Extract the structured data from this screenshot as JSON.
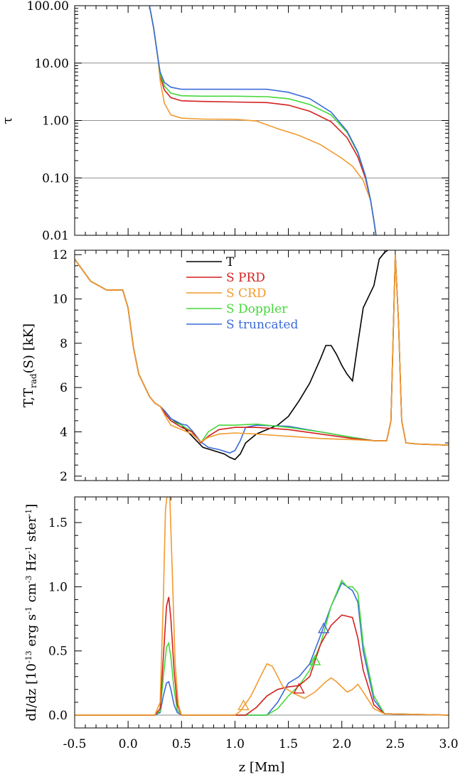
{
  "chart_data": [
    {
      "type": "line",
      "panel": "top",
      "ylabel": "τ",
      "yscale": "log",
      "ylim": [
        0.01,
        100
      ],
      "xlim": [
        -0.5,
        3.0
      ],
      "ytick_labels": [
        "100.00",
        "10.00",
        "1.00",
        "0.10",
        "0.01"
      ],
      "ytick_values": [
        100,
        10,
        1,
        0.1,
        0.01
      ],
      "grid": "horizontal lines at decades",
      "colors": {
        "PRD": "#d42020",
        "CRD": "#f29a2e",
        "Doppler": "#45d83a",
        "truncated": "#3b6bd8"
      },
      "series": [
        {
          "key": "PRD",
          "x": [
            0.2,
            0.24,
            0.28,
            0.3,
            0.34,
            0.4,
            0.5,
            0.7,
            1.0,
            1.3,
            1.5,
            1.7,
            1.9,
            2.05,
            2.15,
            2.22,
            2.27,
            2.3,
            2.32
          ],
          "values": [
            100,
            40,
            12,
            6.0,
            3.4,
            2.5,
            2.2,
            2.15,
            2.1,
            2.05,
            1.85,
            1.45,
            0.95,
            0.5,
            0.23,
            0.1,
            0.04,
            0.018,
            0.01
          ]
        },
        {
          "key": "CRD",
          "x": [
            0.2,
            0.24,
            0.28,
            0.3,
            0.34,
            0.4,
            0.5,
            0.7,
            1.0,
            1.2,
            1.4,
            1.6,
            1.8,
            2.0,
            2.1,
            2.2,
            2.27,
            2.3,
            2.32
          ],
          "values": [
            100,
            40,
            12,
            5.0,
            2.0,
            1.25,
            1.1,
            1.06,
            1.05,
            0.98,
            0.72,
            0.55,
            0.38,
            0.22,
            0.16,
            0.09,
            0.04,
            0.018,
            0.01
          ]
        },
        {
          "key": "Doppler",
          "x": [
            0.2,
            0.24,
            0.28,
            0.3,
            0.34,
            0.4,
            0.5,
            0.7,
            1.0,
            1.3,
            1.5,
            1.7,
            1.9,
            2.05,
            2.15,
            2.22,
            2.27,
            2.3,
            2.32
          ],
          "values": [
            100,
            40,
            12,
            6.5,
            4.0,
            3.0,
            2.7,
            2.65,
            2.65,
            2.6,
            2.4,
            1.9,
            1.25,
            0.62,
            0.27,
            0.11,
            0.04,
            0.018,
            0.01
          ]
        },
        {
          "key": "truncated",
          "x": [
            0.2,
            0.24,
            0.28,
            0.3,
            0.34,
            0.4,
            0.5,
            0.7,
            1.0,
            1.3,
            1.5,
            1.7,
            1.9,
            2.05,
            2.15,
            2.22,
            2.27,
            2.3,
            2.32
          ],
          "values": [
            100,
            40,
            12,
            7.0,
            4.6,
            3.8,
            3.5,
            3.5,
            3.5,
            3.5,
            3.1,
            2.4,
            1.4,
            0.65,
            0.28,
            0.11,
            0.04,
            0.018,
            0.01
          ]
        }
      ]
    },
    {
      "type": "line",
      "panel": "middle",
      "ylabel_main": "T,T",
      "ylabel_sub": "rad",
      "ylabel_rest": "(S) [kK]",
      "ylim": [
        1.8,
        12.2
      ],
      "xlim": [
        -0.5,
        3.0
      ],
      "ytick_values": [
        2,
        4,
        6,
        8,
        10,
        12
      ],
      "legend": {
        "placement": "upper-left",
        "entries": [
          {
            "key": "T",
            "label": "T",
            "color": "#000000"
          },
          {
            "key": "PRD",
            "label": "S PRD",
            "color": "#d42020"
          },
          {
            "key": "CRD",
            "label": "S CRD",
            "color": "#f29a2e"
          },
          {
            "key": "Doppler",
            "label": "S Doppler",
            "color": "#45d83a"
          },
          {
            "key": "truncated",
            "label": "S truncated",
            "color": "#3b6bd8"
          }
        ]
      },
      "series": [
        {
          "key": "T",
          "x": [
            -0.5,
            -0.35,
            -0.2,
            -0.05,
            0.0,
            0.05,
            0.1,
            0.2,
            0.25,
            0.3,
            0.35,
            0.4,
            0.5,
            0.6,
            0.7,
            0.8,
            0.9,
            0.95,
            1.0,
            1.05,
            1.1,
            1.2,
            1.3,
            1.4,
            1.5,
            1.6,
            1.7,
            1.8,
            1.85,
            1.9,
            1.95,
            2.0,
            2.05,
            2.1,
            2.15,
            2.2,
            2.3,
            2.35,
            2.4,
            2.43
          ],
          "values": [
            11.8,
            10.8,
            10.4,
            10.4,
            9.6,
            7.8,
            6.6,
            5.6,
            5.3,
            5.15,
            4.9,
            4.6,
            4.3,
            3.8,
            3.3,
            3.15,
            3.0,
            2.85,
            2.75,
            3.0,
            3.5,
            3.9,
            4.1,
            4.3,
            4.7,
            5.4,
            6.2,
            7.3,
            7.9,
            7.9,
            7.5,
            7.0,
            6.6,
            6.3,
            8.0,
            9.6,
            10.6,
            11.8,
            12.1,
            12.2
          ]
        },
        {
          "key": "PRD",
          "x": [
            -0.5,
            -0.35,
            -0.2,
            -0.05,
            0.0,
            0.05,
            0.1,
            0.2,
            0.25,
            0.3,
            0.35,
            0.4,
            0.5,
            0.6,
            0.68,
            0.75,
            0.85,
            1.0,
            1.2,
            1.5,
            1.8,
            2.1,
            2.3,
            2.42,
            2.46,
            2.5,
            2.53,
            2.56,
            2.6,
            2.7,
            3.0
          ],
          "values": [
            11.8,
            10.8,
            10.4,
            10.4,
            9.6,
            7.8,
            6.6,
            5.6,
            5.3,
            5.15,
            4.8,
            4.5,
            4.2,
            4.0,
            3.5,
            3.8,
            4.1,
            4.2,
            4.2,
            4.1,
            3.9,
            3.7,
            3.6,
            3.6,
            4.5,
            12.0,
            9.0,
            4.5,
            3.5,
            3.45,
            3.4
          ]
        },
        {
          "key": "CRD",
          "x": [
            -0.5,
            -0.35,
            -0.2,
            -0.05,
            0.0,
            0.05,
            0.1,
            0.2,
            0.25,
            0.3,
            0.35,
            0.4,
            0.5,
            0.6,
            0.68,
            0.75,
            0.85,
            1.0,
            1.2,
            1.5,
            1.8,
            2.1,
            2.3,
            2.42,
            2.46,
            2.5,
            2.53,
            2.56,
            2.6,
            2.7,
            3.0
          ],
          "values": [
            11.8,
            10.8,
            10.4,
            10.4,
            9.6,
            7.8,
            6.6,
            5.6,
            5.3,
            5.15,
            4.7,
            4.3,
            4.1,
            3.9,
            3.55,
            3.75,
            3.9,
            3.95,
            3.9,
            3.8,
            3.7,
            3.65,
            3.6,
            3.6,
            4.5,
            12.0,
            9.0,
            4.5,
            3.5,
            3.45,
            3.4
          ]
        },
        {
          "key": "Doppler",
          "x": [
            -0.5,
            -0.35,
            -0.2,
            -0.05,
            0.0,
            0.05,
            0.1,
            0.2,
            0.25,
            0.3,
            0.35,
            0.4,
            0.5,
            0.6,
            0.68,
            0.75,
            0.85,
            1.0,
            1.2,
            1.5,
            1.8,
            2.1,
            2.3,
            2.42,
            2.46,
            2.5,
            2.53,
            2.56,
            2.6,
            2.7,
            3.0
          ],
          "values": [
            11.8,
            10.8,
            10.4,
            10.4,
            9.6,
            7.8,
            6.6,
            5.6,
            5.3,
            5.15,
            4.8,
            4.5,
            4.3,
            4.0,
            3.5,
            4.0,
            4.3,
            4.3,
            4.35,
            4.2,
            4.0,
            3.75,
            3.6,
            3.6,
            4.5,
            12.0,
            9.0,
            4.5,
            3.5,
            3.45,
            3.4
          ]
        },
        {
          "key": "truncated",
          "x": [
            -0.5,
            -0.35,
            -0.2,
            -0.05,
            0.0,
            0.05,
            0.1,
            0.2,
            0.25,
            0.3,
            0.35,
            0.4,
            0.5,
            0.55,
            0.6,
            0.68,
            0.75,
            0.85,
            0.95,
            1.0,
            1.05,
            1.1,
            1.2,
            1.5,
            1.8,
            2.1,
            2.3,
            2.42,
            2.46,
            2.5,
            2.53,
            2.56,
            2.6,
            2.7,
            3.0
          ],
          "values": [
            11.8,
            10.8,
            10.4,
            10.4,
            9.6,
            7.8,
            6.6,
            5.6,
            5.3,
            5.15,
            4.9,
            4.6,
            4.35,
            4.3,
            4.05,
            3.55,
            3.3,
            3.2,
            3.05,
            3.15,
            3.6,
            4.2,
            4.3,
            4.25,
            4.0,
            3.75,
            3.6,
            3.6,
            4.5,
            12.0,
            9.0,
            4.5,
            3.5,
            3.45,
            3.4
          ]
        }
      ]
    },
    {
      "type": "line",
      "panel": "bottom",
      "ylabel_parts": [
        "dI/dz [10",
        "-13",
        " erg s",
        "-1",
        " cm",
        "-3",
        " Hz",
        "-1",
        " ster",
        "-1",
        "]"
      ],
      "xlabel": "z [Mm]",
      "xlim": [
        -0.5,
        3.0
      ],
      "ylim": [
        -0.1,
        1.7
      ],
      "xtick_values": [
        -0.5,
        0.0,
        0.5,
        1.0,
        1.5,
        2.0,
        2.5,
        3.0
      ],
      "xtick_labels": [
        "-0.5",
        "0.0",
        "0.5",
        "1.0",
        "1.5",
        "2.0",
        "2.5",
        "3.0"
      ],
      "ytick_values": [
        0.0,
        0.5,
        1.0,
        1.5
      ],
      "ytick_labels": [
        "0.0",
        "0.5",
        "1.0",
        "1.5"
      ],
      "zero_line": true,
      "series": [
        {
          "key": "PRD",
          "x": [
            -0.5,
            0.25,
            0.3,
            0.33,
            0.36,
            0.38,
            0.4,
            0.43,
            0.46,
            0.5,
            1.1,
            1.2,
            1.3,
            1.4,
            1.5,
            1.6,
            1.7,
            1.8,
            1.9,
            2.0,
            2.05,
            2.1,
            2.15,
            2.2,
            2.3,
            2.4,
            3.0
          ],
          "values": [
            0,
            0,
            0.05,
            0.45,
            0.85,
            0.92,
            0.75,
            0.35,
            0.08,
            0,
            0,
            0.06,
            0.15,
            0.2,
            0.22,
            0.23,
            0.3,
            0.55,
            0.7,
            0.78,
            0.77,
            0.76,
            0.6,
            0.35,
            0.08,
            0.01,
            0
          ]
        },
        {
          "key": "CRD",
          "x": [
            -0.5,
            0.25,
            0.3,
            0.33,
            0.35,
            0.37,
            0.39,
            0.41,
            0.44,
            0.47,
            0.5,
            1.0,
            1.05,
            1.15,
            1.25,
            1.3,
            1.35,
            1.45,
            1.55,
            1.65,
            1.75,
            1.85,
            1.9,
            1.95,
            2.05,
            2.1,
            2.15,
            2.2,
            2.3,
            2.4,
            3.0
          ],
          "values": [
            0,
            0,
            0.1,
            0.9,
            1.6,
            1.75,
            1.7,
            1.2,
            0.4,
            0.08,
            0,
            0,
            0.03,
            0.15,
            0.32,
            0.4,
            0.38,
            0.22,
            0.17,
            0.13,
            0.18,
            0.26,
            0.29,
            0.26,
            0.18,
            0.2,
            0.24,
            0.18,
            0.05,
            0.01,
            0
          ]
        },
        {
          "key": "Doppler",
          "x": [
            -0.5,
            0.25,
            0.3,
            0.33,
            0.36,
            0.38,
            0.4,
            0.43,
            0.46,
            0.5,
            1.3,
            1.4,
            1.5,
            1.6,
            1.7,
            1.8,
            1.9,
            2.0,
            2.05,
            2.1,
            2.15,
            2.2,
            2.3,
            2.4,
            3.0
          ],
          "values": [
            0,
            0,
            0.03,
            0.3,
            0.53,
            0.56,
            0.45,
            0.2,
            0.04,
            0,
            0,
            0.05,
            0.15,
            0.23,
            0.35,
            0.55,
            0.85,
            1.05,
            1.0,
            1.0,
            0.95,
            0.55,
            0.15,
            0.01,
            0
          ]
        },
        {
          "key": "truncated",
          "x": [
            -0.5,
            0.25,
            0.3,
            0.33,
            0.36,
            0.38,
            0.4,
            0.43,
            0.46,
            0.5,
            1.3,
            1.4,
            1.5,
            1.6,
            1.7,
            1.8,
            1.9,
            2.0,
            2.05,
            2.1,
            2.15,
            2.2,
            2.3,
            2.4,
            3.0
          ],
          "values": [
            0,
            0,
            0.02,
            0.15,
            0.25,
            0.26,
            0.2,
            0.08,
            0.02,
            0,
            0,
            0.1,
            0.25,
            0.3,
            0.4,
            0.62,
            0.85,
            1.03,
            1.0,
            0.97,
            0.88,
            0.5,
            0.12,
            0.01,
            0
          ]
        }
      ],
      "markers": [
        {
          "key": "CRD",
          "shape": "triangle",
          "x": 1.08,
          "y": 0.07
        },
        {
          "key": "PRD",
          "shape": "triangle",
          "x": 1.6,
          "y": 0.2
        },
        {
          "key": "Doppler",
          "shape": "triangle",
          "x": 1.75,
          "y": 0.42
        },
        {
          "key": "truncated",
          "shape": "triangle",
          "x": 1.83,
          "y": 0.67
        }
      ]
    }
  ]
}
